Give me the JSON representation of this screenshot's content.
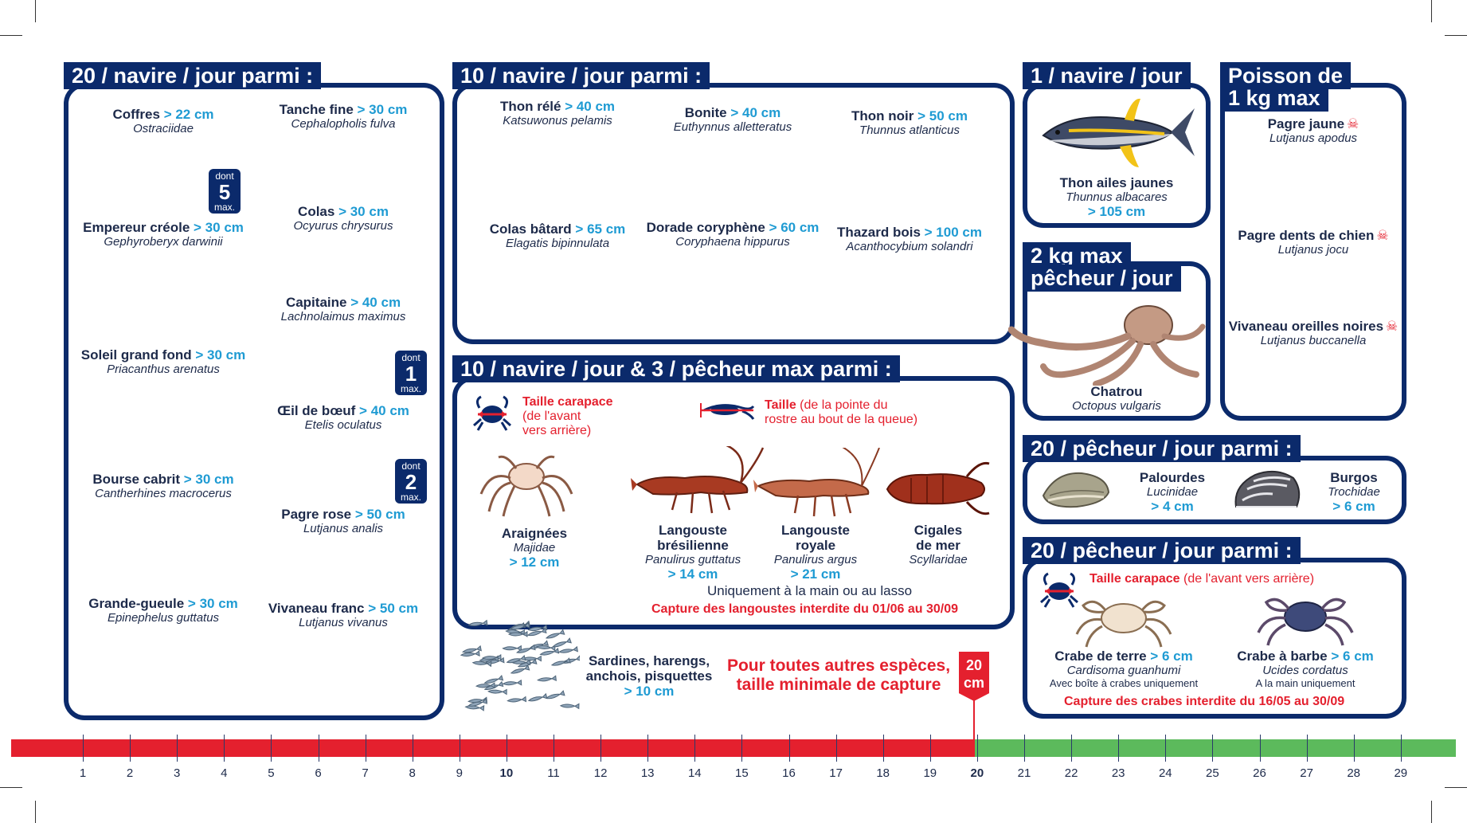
{
  "colors": {
    "navy": "#0b2a6b",
    "accent_blue": "#1f9bd3",
    "red": "#e4202e",
    "green": "#5cba5c"
  },
  "panel1": {
    "title": "20 / navire / jour parmi :",
    "fish": [
      {
        "name": "Coffres",
        "size": "> 22 cm",
        "sci": "Ostraciidae",
        "icon": "trunkfish-icon",
        "dont_a": "dont",
        "dont_n": "5",
        "dont_b": "max."
      },
      {
        "name": "Tanche fine",
        "size": "> 30 cm",
        "sci": "Cephalopholis fulva",
        "icon": "coney-icon"
      },
      {
        "name": "Empereur créole",
        "size": "> 30 cm",
        "sci": "Gephyroberyx darwinii",
        "icon": "roughy-icon"
      },
      {
        "name": "Colas",
        "size": "> 30 cm",
        "sci": "Ocyurus chrysurus",
        "icon": "yellowtail-snapper-icon"
      },
      {
        "name": "Capitaine",
        "size": "> 40 cm",
        "sci": "Lachnolaimus maximus",
        "icon": "hogfish-icon",
        "dont_a": "dont",
        "dont_n": "1",
        "dont_b": "max."
      },
      {
        "name": "Soleil grand fond",
        "size": "> 30 cm",
        "sci": "Priacanthus arenatus",
        "icon": "bigeye-icon"
      },
      {
        "name": "Œil de bœuf",
        "size": "> 40 cm",
        "sci": "Etelis oculatus",
        "icon": "queen-snapper-icon",
        "dont_a": "dont",
        "dont_n": "2",
        "dont_b": "max."
      },
      {
        "name": "Bourse cabrit",
        "size": "> 30 cm",
        "sci": "Cantherhines macrocerus",
        "icon": "filefish-icon"
      },
      {
        "name": "Pagre rose",
        "size": "> 50 cm",
        "sci": "Lutjanus analis",
        "icon": "mutton-snapper-icon"
      },
      {
        "name": "Grande-gueule",
        "size": "> 30 cm",
        "sci": "Epinephelus guttatus",
        "icon": "red-hind-icon"
      },
      {
        "name": "Vivaneau franc",
        "size": "> 50 cm",
        "sci": "Lutjanus vivanus",
        "icon": "silk-snapper-icon"
      }
    ]
  },
  "panel2": {
    "title": "10 / navire / jour parmi :",
    "fish": [
      {
        "name": "Thon rélé",
        "size": "> 40 cm",
        "sci": "Katsuwonus pelamis",
        "icon": "skipjack-tuna-icon"
      },
      {
        "name": "Bonite",
        "size": "> 40 cm",
        "sci": "Euthynnus alletteratus",
        "icon": "bonito-icon"
      },
      {
        "name": "Thon noir",
        "size": "> 50 cm",
        "sci": "Thunnus atlanticus",
        "icon": "blackfin-tuna-icon"
      },
      {
        "name": "Colas bâtard",
        "size": "> 65 cm",
        "sci": "Elagatis bipinnulata",
        "icon": "rainbow-runner-icon"
      },
      {
        "name": "Dorade coryphène",
        "size": "> 60 cm",
        "sci": "Coryphaena hippurus",
        "icon": "mahi-mahi-icon"
      },
      {
        "name": "Thazard bois",
        "size": "> 100 cm",
        "sci": "Acanthocybium solandri",
        "icon": "wahoo-icon"
      }
    ]
  },
  "panel3": {
    "title": "10 / navire / jour & 3 / pêcheur max parmi :",
    "carapace_label": "Taille carapace",
    "carapace_desc_1": "(de l'avant",
    "carapace_desc_2": "vers arrière)",
    "taille_label": "Taille",
    "taille_desc_1": "(de la pointe du",
    "taille_desc_2": "rostre au bout de la queue)",
    "items": [
      {
        "name": "Araignées",
        "sci": "Majidae",
        "size": "> 12 cm",
        "icon": "spider-crab-icon"
      },
      {
        "name_1": "Langouste",
        "name_2": "brésilienne",
        "sci": "Panulirus guttatus",
        "size": "> 14 cm",
        "icon": "spiny-lobster-icon"
      },
      {
        "name_1": "Langouste",
        "name_2": "royale",
        "sci": "Panulirus argus",
        "size": "> 21 cm",
        "icon": "royal-lobster-icon"
      },
      {
        "name_1": "Cigales",
        "name_2": "de mer",
        "sci": "Scyllaridae",
        "icon": "slipper-lobster-icon"
      }
    ],
    "note": "Uniquement à la main ou au lasso",
    "ban": "Capture des langoustes interdite du 01/06 au 30/09"
  },
  "panel4": {
    "title": "1 / navire / jour",
    "name": "Thon ailes jaunes",
    "sci": "Thunnus albacares",
    "size": "> 105 cm",
    "icon": "yellowfin-tuna-icon"
  },
  "panel5": {
    "title_1": "2 kg max",
    "title_2": "pêcheur / jour",
    "name": "Chatrou",
    "sci": "Octopus vulgaris",
    "icon": "octopus-icon"
  },
  "panel6": {
    "title_1": "Poisson de",
    "title_2": "1 kg max",
    "fish": [
      {
        "name": "Pagre jaune",
        "sci": "Lutjanus apodus",
        "icon": "schoolmaster-icon"
      },
      {
        "name": "Pagre dents de chien",
        "sci": "Lutjanus jocu",
        "icon": "dog-snapper-icon"
      },
      {
        "name": "Vivaneau oreilles noires",
        "sci": "Lutjanus buccanella",
        "icon": "blackfin-snapper-icon"
      }
    ]
  },
  "panel7": {
    "title": "20 / pêcheur / jour parmi :",
    "items": [
      {
        "name": "Palourdes",
        "sci": "Lucinidae",
        "size": "> 4 cm",
        "icon": "clam-icon"
      },
      {
        "name": "Burgos",
        "sci": "Trochidae",
        "size": "> 6 cm",
        "icon": "top-shell-icon"
      }
    ]
  },
  "panel8": {
    "title": "20 / pêcheur / jour parmi :",
    "carapace_label": "Taille carapace",
    "carapace_desc": "(de l'avant vers arrière)",
    "items": [
      {
        "name": "Crabe de terre",
        "size": "> 6 cm",
        "sci": "Cardisoma guanhumi",
        "note": "Avec boîte à crabes uniquement",
        "icon": "land-crab-icon"
      },
      {
        "name": "Crabe à barbe",
        "size": "> 6 cm",
        "sci": "Ucides cordatus",
        "note": "A la main uniquement",
        "icon": "mangrove-crab-icon"
      }
    ],
    "ban": "Capture des crabes interdite du 16/05 au 30/09"
  },
  "sardines": {
    "line_1": "Sardines, harengs,",
    "line_2": "anchois, pisquettes",
    "size": "> 10 cm",
    "icon": "sardine-school-icon"
  },
  "minimum": {
    "line_1": "Pour toutes autres espèces,",
    "line_2": "taille minimale de capture",
    "badge_n": "20",
    "badge_u": "cm"
  },
  "ruler": {
    "ticks": [
      "1",
      "2",
      "3",
      "4",
      "5",
      "6",
      "7",
      "8",
      "9",
      "10",
      "11",
      "12",
      "13",
      "14",
      "15",
      "16",
      "17",
      "18",
      "19",
      "20",
      "21",
      "22",
      "23",
      "24",
      "25",
      "26",
      "27",
      "28",
      "29"
    ],
    "bold": [
      "10",
      "20"
    ],
    "red_until": 20
  }
}
